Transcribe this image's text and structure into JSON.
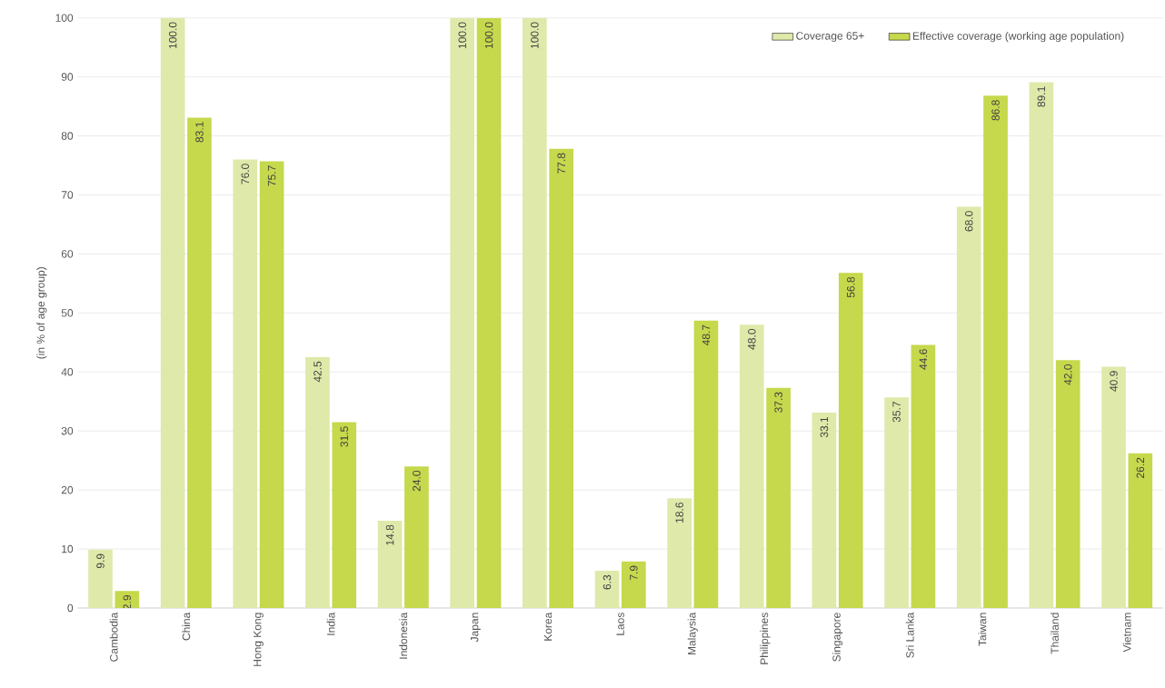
{
  "chart_data": {
    "type": "bar",
    "ylabel": "(in % of age group)",
    "categories": [
      "Cambodia",
      "China",
      "Hong Kong",
      "India",
      "Indonesia",
      "Japan",
      "Korea",
      "Laos",
      "Malaysia",
      "Philippines",
      "Singapore",
      "Sri Lanka",
      "Taiwan",
      "Thailand",
      "Vietnam"
    ],
    "series": [
      {
        "name": "Coverage 65+",
        "color": "#dfe9aa",
        "values": [
          9.9,
          100.0,
          76.0,
          42.5,
          14.8,
          100.0,
          100.0,
          6.3,
          18.6,
          48.0,
          33.1,
          35.7,
          68.0,
          89.1,
          40.9
        ],
        "value_labels": [
          "9.9",
          "100.0",
          "76.0",
          "42.5",
          "14.8",
          "100.0",
          "100.0",
          "6.3",
          "18.6",
          "48.0",
          "33.1",
          "35.7",
          "68.0",
          "89.1",
          "40.9"
        ]
      },
      {
        "name": "Effective coverage (working age population)",
        "color": "#c6d84c",
        "values": [
          2.9,
          83.1,
          75.7,
          31.5,
          24.0,
          100.0,
          77.8,
          7.9,
          48.7,
          37.3,
          56.8,
          44.6,
          86.8,
          42.0,
          26.2
        ],
        "value_labels": [
          "2.9",
          "83.1",
          "75.7",
          "31.5",
          "24.0",
          "100.0",
          "77.8",
          "7.9",
          "48.7",
          "37.3",
          "56.8",
          "44.6",
          "86.8",
          "42.0",
          "26.2"
        ]
      }
    ],
    "ylim": [
      0,
      100
    ],
    "yticks": [
      0,
      10,
      20,
      30,
      40,
      50,
      60,
      70,
      80,
      90,
      100
    ],
    "grid": "y",
    "legend": "top right"
  }
}
